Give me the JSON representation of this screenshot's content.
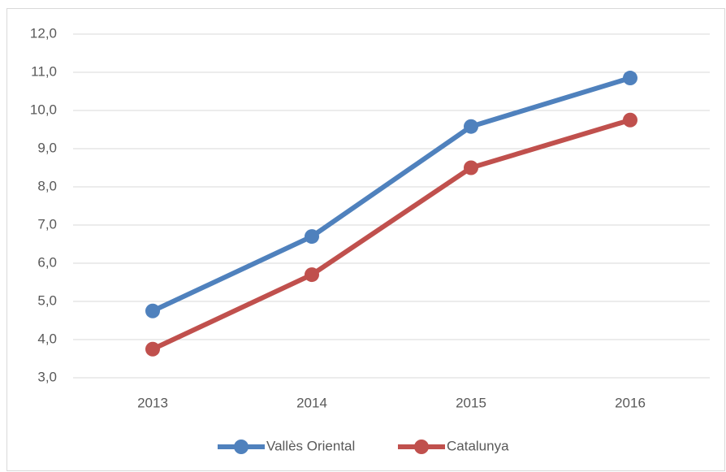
{
  "chart_data": {
    "type": "line",
    "categories": [
      "2013",
      "2014",
      "2015",
      "2016"
    ],
    "series": [
      {
        "name": "Vallès Oriental",
        "color": "#4f81bd",
        "values": [
          4.75,
          6.7,
          9.58,
          10.85
        ]
      },
      {
        "name": "Catalunya",
        "color": "#c0504d",
        "values": [
          3.75,
          5.7,
          8.5,
          9.75
        ]
      }
    ],
    "ylim": [
      3,
      12
    ],
    "yticks": [
      {
        "value": 3,
        "label": "3,0"
      },
      {
        "value": 4,
        "label": "4,0"
      },
      {
        "value": 5,
        "label": "5,0"
      },
      {
        "value": 6,
        "label": "6,0"
      },
      {
        "value": 7,
        "label": "7,0"
      },
      {
        "value": 8,
        "label": "8,0"
      },
      {
        "value": 9,
        "label": "9,0"
      },
      {
        "value": 10,
        "label": "10,0"
      },
      {
        "value": 11,
        "label": "11,0"
      },
      {
        "value": 12,
        "label": "12,0"
      }
    ],
    "grid": true,
    "legend": "bottom"
  }
}
